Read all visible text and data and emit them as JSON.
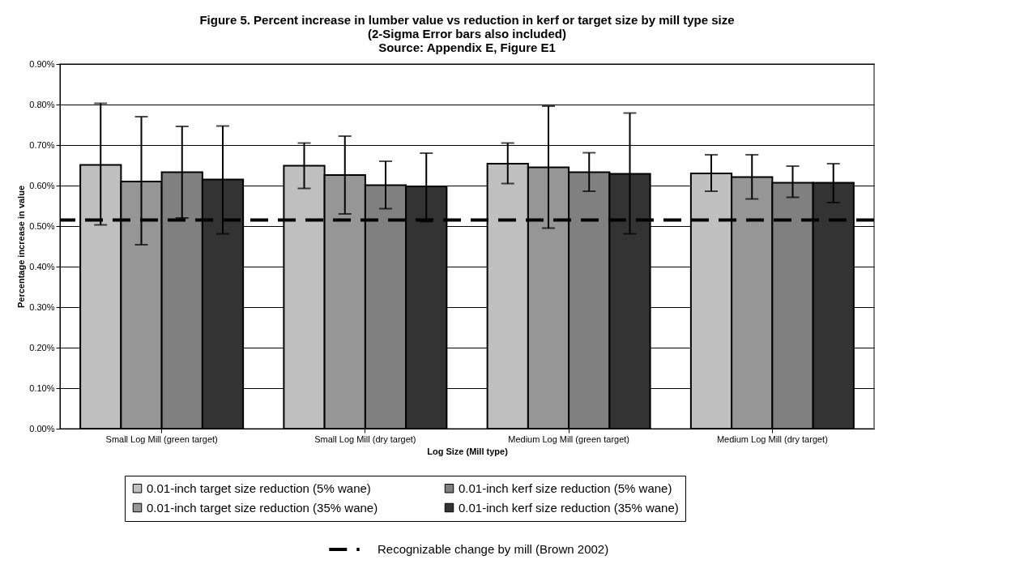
{
  "chart_data": {
    "type": "bar",
    "title": "Figure 5. Percent increase in lumber value vs reduction in kerf or target size by mill type size",
    "subtitle": "(2-Sigma Error bars also included)",
    "annotations": [
      "Source: Appendix E, Figure E1"
    ],
    "xlabel": "Log Size (Mill type)",
    "ylabel": "Percentage increase in value",
    "categories": [
      "Small Log Mill (green target)",
      "Small Log Mill (dry target)",
      "Medium Log Mill (green target)",
      "Medium Log Mill (dry target)"
    ],
    "series": [
      {
        "name": "0.01-inch target size reduction (5% wane)",
        "color": "#c0c0c0",
        "values": [
          0.651,
          0.649,
          0.654,
          0.63
        ],
        "errors": [
          [
            0.503,
            0.803
          ],
          [
            0.593,
            0.705
          ],
          [
            0.605,
            0.705
          ],
          [
            0.586,
            0.676
          ]
        ]
      },
      {
        "name": "0.01-inch target size reduction (35% wane)",
        "color": "#969696",
        "values": [
          0.61,
          0.626,
          0.645,
          0.621
        ],
        "errors": [
          [
            0.454,
            0.77
          ],
          [
            0.53,
            0.722
          ],
          [
            0.495,
            0.796
          ],
          [
            0.567,
            0.676
          ]
        ]
      },
      {
        "name": "0.01-inch kerf size reduction (5% wane)",
        "color": "#808080",
        "values": [
          0.633,
          0.601,
          0.633,
          0.607
        ],
        "errors": [
          [
            0.52,
            0.746
          ],
          [
            0.543,
            0.66
          ],
          [
            0.586,
            0.681
          ],
          [
            0.571,
            0.648
          ]
        ]
      },
      {
        "name": "0.01-inch kerf size reduction (35% wane)",
        "color": "#333333",
        "values": [
          0.615,
          0.598,
          0.629,
          0.607
        ],
        "errors": [
          [
            0.481,
            0.747
          ],
          [
            0.511,
            0.68
          ],
          [
            0.481,
            0.779
          ],
          [
            0.558,
            0.654
          ]
        ]
      }
    ],
    "ylim": [
      0,
      0.9
    ],
    "yticks": [
      {
        "value": 0,
        "label": "0.00%"
      },
      {
        "value": 0.1,
        "label": "0.10%"
      },
      {
        "value": 0.2,
        "label": "0.20%"
      },
      {
        "value": 0.3,
        "label": "0.30%"
      },
      {
        "value": 0.4,
        "label": "0.40%"
      },
      {
        "value": 0.5,
        "label": "0.50%"
      },
      {
        "value": 0.6,
        "label": "0.60%"
      },
      {
        "value": 0.7,
        "label": "0.70%"
      },
      {
        "value": 0.8,
        "label": "0.80%"
      },
      {
        "value": 0.9,
        "label": "0.90%"
      }
    ],
    "ref_lines": [
      {
        "axis": "y",
        "value": 0.515,
        "label": "Recognizable change by mill (Brown 2002)",
        "color": "#000000",
        "line_style": "dashed"
      }
    ],
    "grid": "y",
    "legend": "bottom"
  }
}
